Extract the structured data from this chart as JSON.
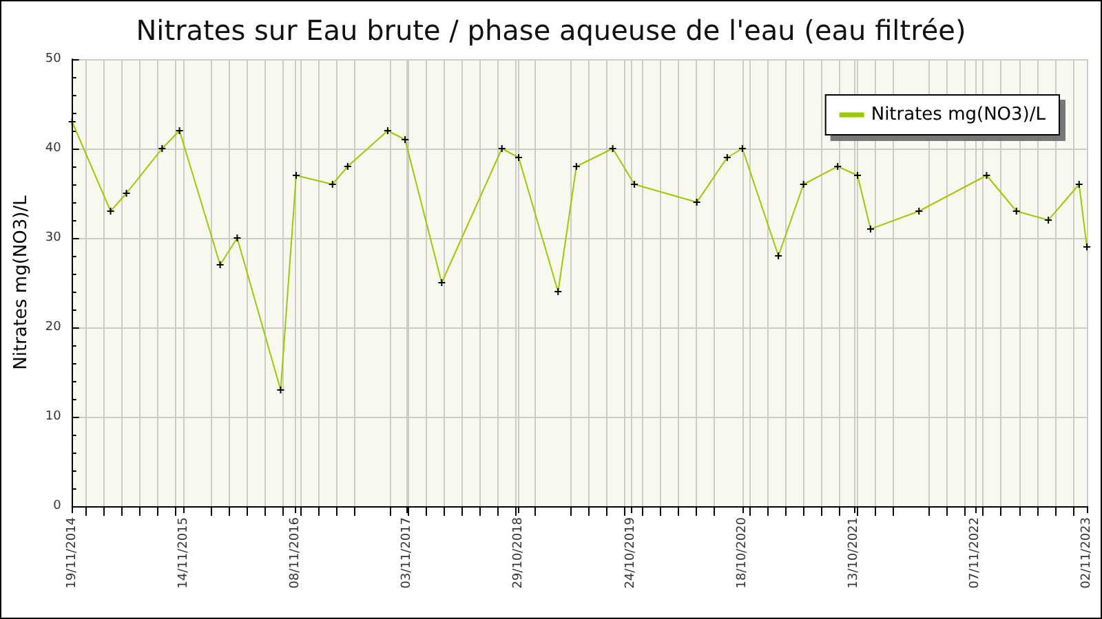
{
  "chart_data": {
    "type": "line",
    "title": "Nitrates sur Eau brute / phase aqueuse de l'eau (eau filtrée)",
    "ylabel": "Nitrates mg(NO3)/L",
    "x": [
      "2014-11-19",
      "2015-03-23",
      "2015-05-13",
      "2015-09-05",
      "2015-10-31",
      "2016-03-10",
      "2016-05-04",
      "2016-09-21",
      "2016-11-10",
      "2017-03-07",
      "2017-04-25",
      "2017-09-01",
      "2017-10-27",
      "2018-02-22",
      "2018-09-04",
      "2018-10-28",
      "2019-03-04",
      "2019-05-02",
      "2019-08-27",
      "2019-11-05",
      "2020-05-24",
      "2020-08-30",
      "2020-10-18",
      "2021-02-11",
      "2021-05-03",
      "2021-08-21",
      "2021-10-24",
      "2021-12-05",
      "2022-05-10",
      "2022-12-14",
      "2023-03-20",
      "2023-07-01",
      "2023-10-08",
      "2023-11-02"
    ],
    "series": [
      {
        "name": "Nitrates mg(NO3)/L",
        "color": "#99cc00",
        "values": [
          43,
          33,
          35,
          40,
          42,
          27,
          30,
          13,
          37,
          36,
          38,
          42,
          41,
          25,
          40,
          39,
          24,
          38,
          40,
          36,
          34,
          39,
          40,
          28,
          36,
          38,
          37,
          31,
          33,
          37,
          33,
          32,
          36,
          29
        ]
      }
    ],
    "xlim": [
      "2014-11-19",
      "2023-11-02"
    ],
    "xticks": [
      {
        "value": "2014-11-19",
        "label": "19/11/2014"
      },
      {
        "value": "2015-11-14",
        "label": "14/11/2015"
      },
      {
        "value": "2016-11-08",
        "label": "08/11/2016"
      },
      {
        "value": "2017-11-03",
        "label": "03/11/2017"
      },
      {
        "value": "2018-10-29",
        "label": "29/10/2018"
      },
      {
        "value": "2019-10-24",
        "label": "24/10/2019"
      },
      {
        "value": "2020-10-18",
        "label": "18/10/2020"
      },
      {
        "value": "2021-10-13",
        "label": "13/10/2021"
      },
      {
        "value": "2022-11-07",
        "label": "07/11/2022"
      },
      {
        "value": "2023-11-02",
        "label": "02/11/2023"
      }
    ],
    "ylim": [
      0,
      50
    ],
    "yticks": [
      0,
      10,
      20,
      30,
      40,
      50
    ],
    "grid": true,
    "legend": "top right",
    "marker": "cross",
    "line_style": "solid"
  }
}
